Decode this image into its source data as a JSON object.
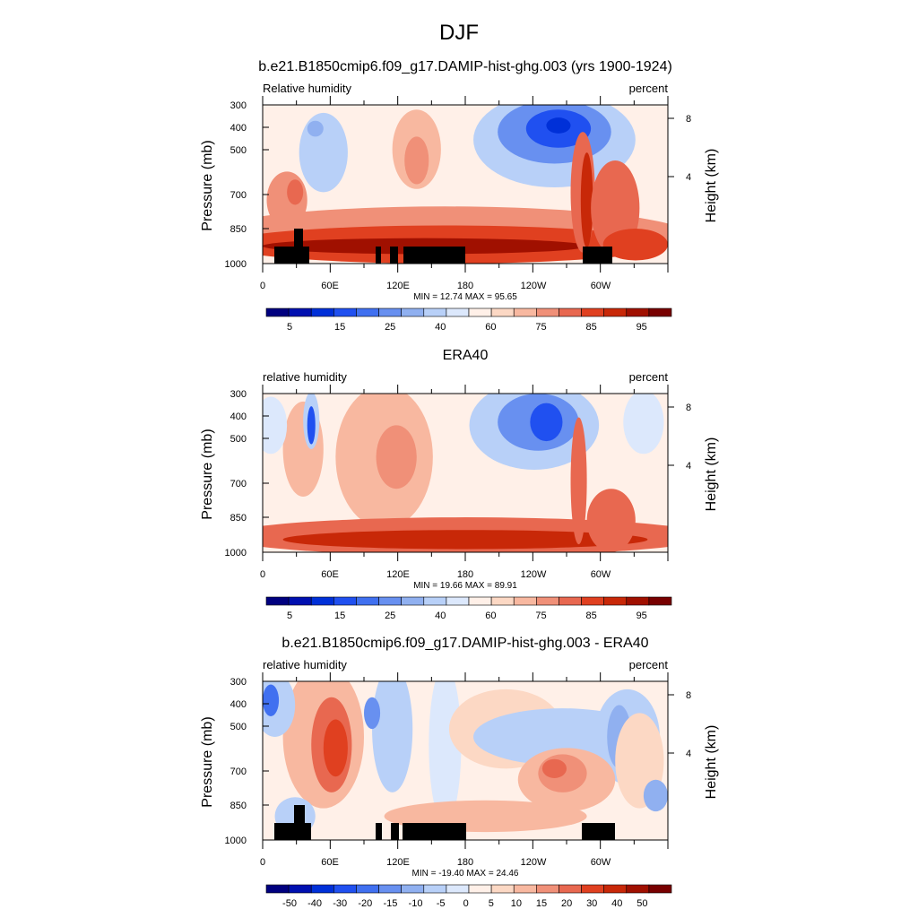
{
  "figure_title": "DJF",
  "colors": {
    "rh_levels": [
      "#00007f",
      "#0010b0",
      "#0030d8",
      "#2050f0",
      "#4070f0",
      "#6890f0",
      "#90b0f0",
      "#b8d0f8",
      "#dce8fc",
      "#fff0e8",
      "#fcd8c4",
      "#f8b8a0",
      "#f09078",
      "#e86850",
      "#e04020",
      "#c82808",
      "#a01000",
      "#780000"
    ],
    "land_mask": "#000000"
  },
  "colorbars": {
    "rh": {
      "labels": [
        "5",
        "15",
        "25",
        "40",
        "60",
        "75",
        "85",
        "95"
      ]
    },
    "diff": {
      "labels": [
        "-50",
        "-40",
        "-30",
        "-20",
        "-15",
        "-10",
        "-5",
        "0",
        "5",
        "10",
        "15",
        "20",
        "30",
        "40",
        "50"
      ]
    }
  },
  "chart_data": [
    {
      "type": "heatmap",
      "title": "b.e21.B1850cmip6.f09_g17.DAMIP-hist-ghg.003 (yrs 1900-1924)",
      "left_string": "Relative humidity",
      "right_string": "percent",
      "ylabel": "Pressure (mb)",
      "ylabel_right": "Height (km)",
      "x_ticks": [
        "0",
        "60E",
        "120E",
        "180",
        "120W",
        "60W"
      ],
      "y_ticks": [
        "300",
        "400",
        "500",
        "700",
        "850",
        "1000"
      ],
      "y_ticks_right": [
        "8",
        "4"
      ],
      "xlim": [
        0,
        360
      ],
      "ylim": [
        1000,
        300
      ],
      "stats": "MIN =  12.74  MAX =  95.65",
      "colorbar": "rh",
      "land_mask": true
    },
    {
      "type": "heatmap",
      "title": "ERA40",
      "left_string": "relative humidity",
      "right_string": "percent",
      "ylabel": "Pressure (mb)",
      "ylabel_right": "Height (km)",
      "x_ticks": [
        "0",
        "60E",
        "120E",
        "180",
        "120W",
        "60W"
      ],
      "y_ticks": [
        "300",
        "400",
        "500",
        "700",
        "850",
        "1000"
      ],
      "y_ticks_right": [
        "8",
        "4"
      ],
      "xlim": [
        0,
        360
      ],
      "ylim": [
        1000,
        300
      ],
      "stats": "MIN =  19.66  MAX =  89.91",
      "colorbar": "rh",
      "land_mask": false
    },
    {
      "type": "heatmap",
      "title": "b.e21.B1850cmip6.f09_g17.DAMIP-hist-ghg.003 - ERA40",
      "left_string": "relative humidity",
      "right_string": "percent",
      "ylabel": "Pressure (mb)",
      "ylabel_right": "Height (km)",
      "x_ticks": [
        "0",
        "60E",
        "120E",
        "180",
        "120W",
        "60W"
      ],
      "y_ticks": [
        "300",
        "400",
        "500",
        "700",
        "850",
        "1000"
      ],
      "y_ticks_right": [
        "8",
        "4"
      ],
      "xlim": [
        0,
        360
      ],
      "ylim": [
        1000,
        300
      ],
      "stats": "MIN = -19.40  MAX =  24.46",
      "colorbar": "diff",
      "land_mask": true
    }
  ]
}
